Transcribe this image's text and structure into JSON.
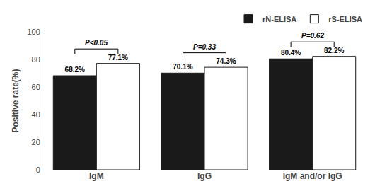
{
  "chart_data": {
    "type": "bar",
    "categories": [
      "IgM",
      "IgG",
      "IgM and/or IgG"
    ],
    "series": [
      {
        "name": "rN-ELISA",
        "color": "#1a1a1a",
        "values": [
          68.2,
          70.1,
          80.4
        ],
        "value_labels": [
          "68.2%",
          "70.1%",
          "80.4%"
        ]
      },
      {
        "name": "rS-ELISA",
        "color": "#ffffff",
        "values": [
          77.1,
          74.3,
          82.2
        ],
        "value_labels": [
          "77.1%",
          "74.3%",
          "82.2%"
        ]
      }
    ],
    "ylabel": "Positive rate(%)",
    "ylim": [
      0,
      100
    ],
    "yticks": [
      0,
      20,
      40,
      60,
      80,
      100
    ],
    "data_labels": true,
    "legend": "upper right",
    "grid": false,
    "annotations": [
      {
        "category": "IgM",
        "text": "P<0.05"
      },
      {
        "category": "IgG",
        "text": "P=0.33"
      },
      {
        "category": "IgM and/or IgG",
        "text": "P=0.62"
      }
    ]
  }
}
